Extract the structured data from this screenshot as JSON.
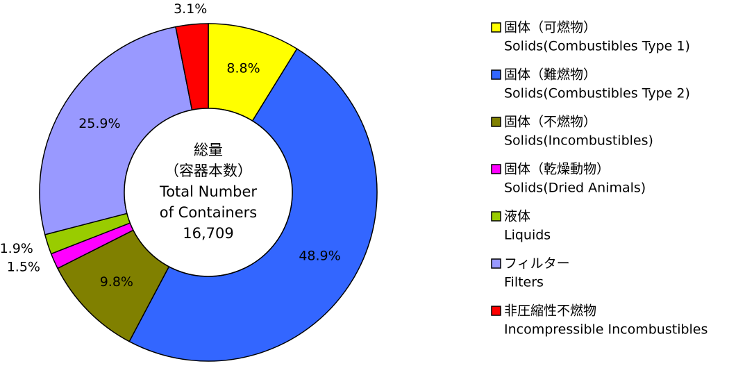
{
  "chart_data": {
    "type": "donut",
    "center_label": [
      "総量",
      "（容器本数）",
      "Total Number",
      "of Containers"
    ],
    "total": {
      "value": 16709,
      "label": "16,709"
    },
    "categories": [
      "固体（可燃物）",
      "固体（難燃物）",
      "固体（不燃物）",
      "固体（乾燥動物）",
      "液体",
      "フィルター",
      "非圧縮性不燃物"
    ],
    "category_subtitles": [
      "Solids(Combustibles Type 1)",
      "Solids(Combustibles Type 2)",
      "Solids(Incombustibles)",
      "Solids(Dried Animals)",
      "Liquids",
      "Filters",
      "Incompressible Incombustibles"
    ],
    "values": [
      8.8,
      48.9,
      9.8,
      1.5,
      1.9,
      25.9,
      3.1
    ],
    "value_labels": [
      "8.8%",
      "48.9%",
      "9.8%",
      "1.5%",
      "1.9%",
      "25.9%",
      "3.1%"
    ],
    "colors": [
      "#ffff00",
      "#3366ff",
      "#808000",
      "#ff00ff",
      "#99cc00",
      "#9999ff",
      "#ff0000"
    ],
    "legend": "right"
  }
}
